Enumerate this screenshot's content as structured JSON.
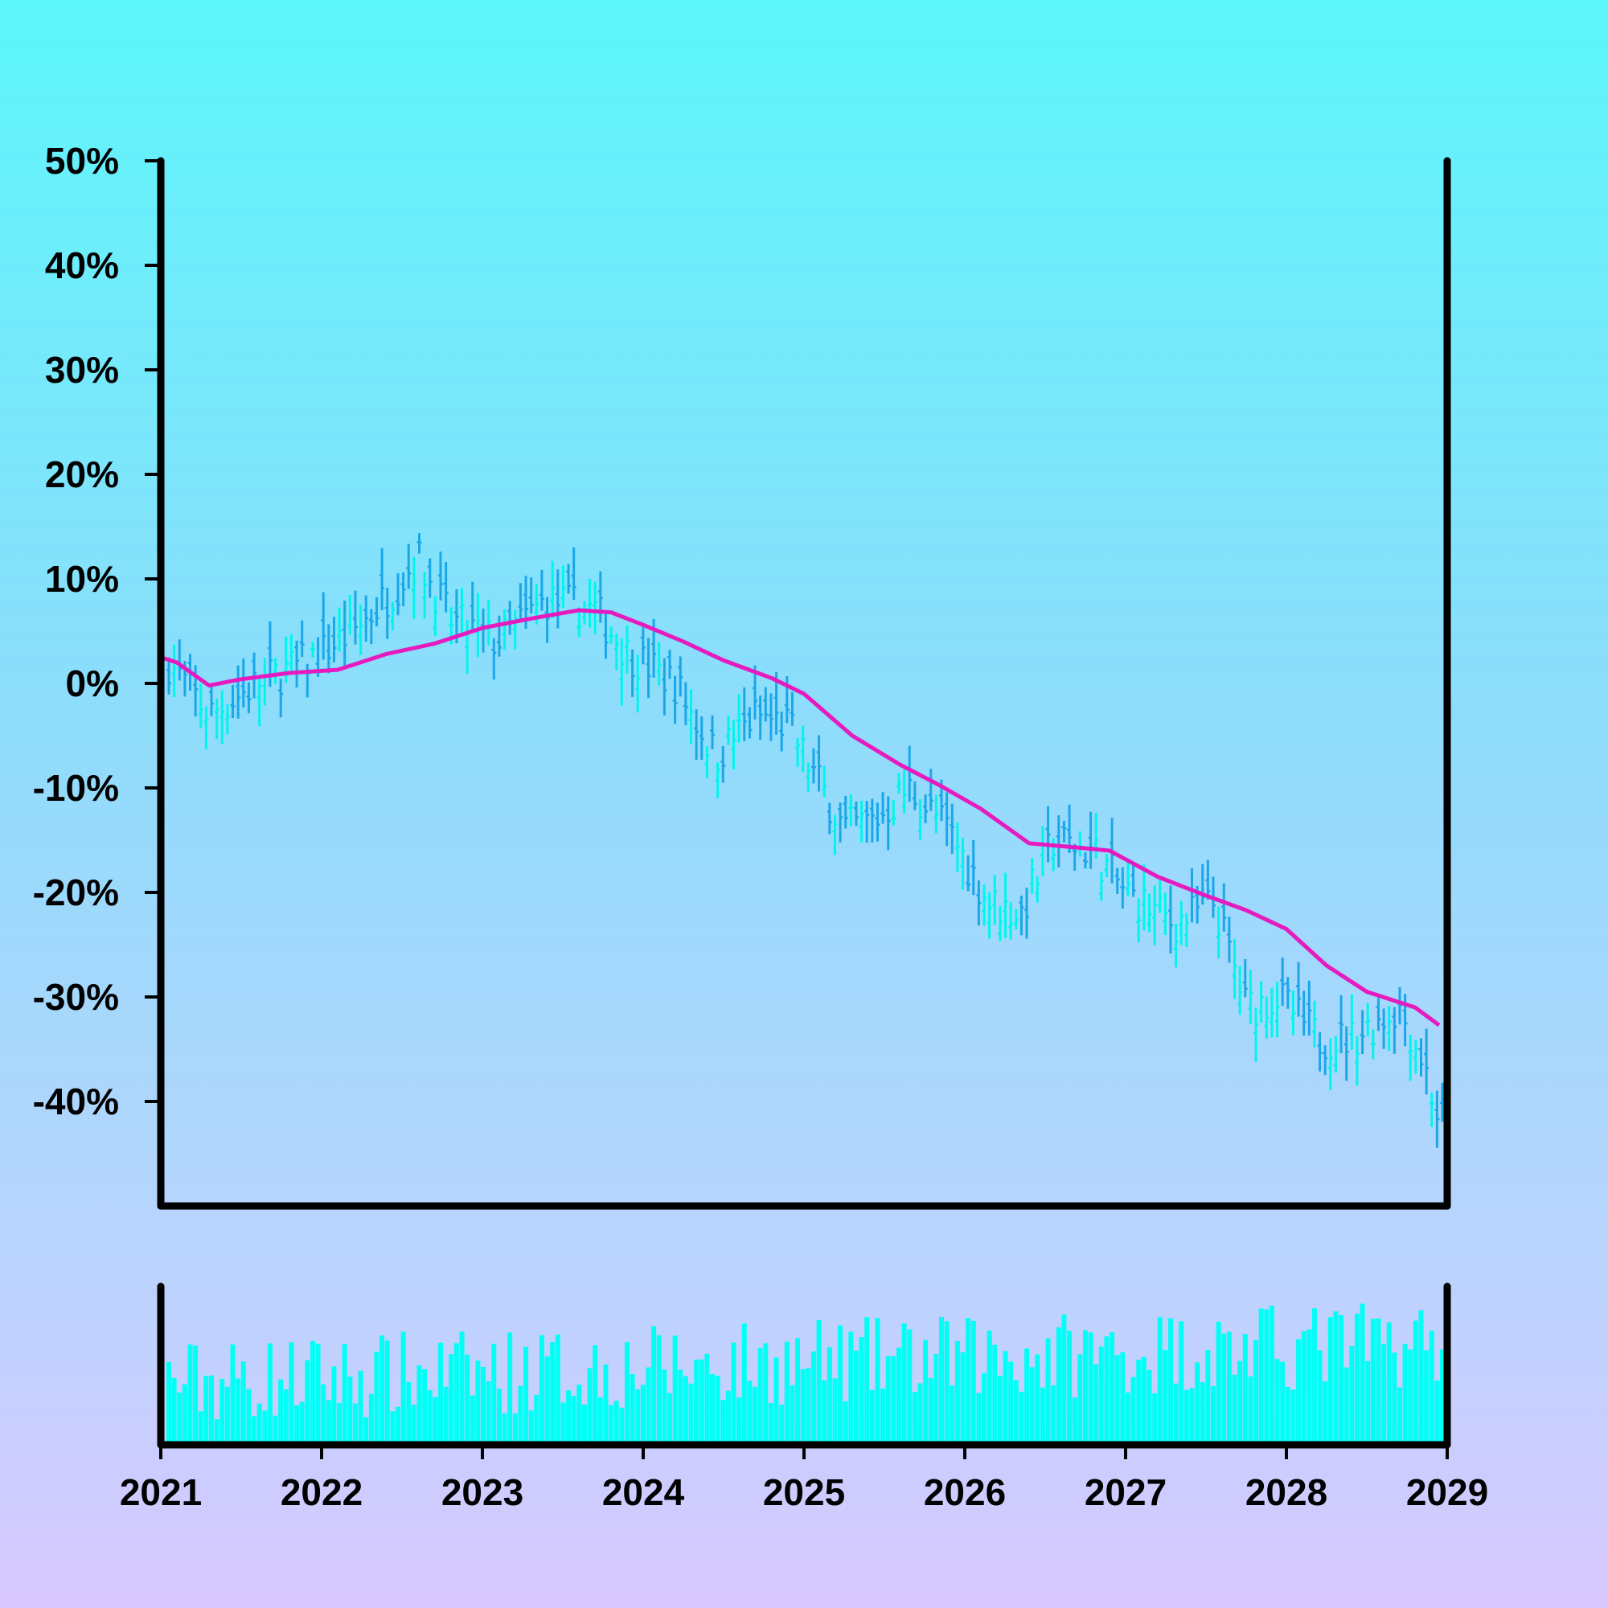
{
  "chart_data": {
    "type": "ohlc",
    "x_axis": {
      "range": [
        2021,
        2029
      ],
      "ticks": [
        "2021",
        "2022",
        "2023",
        "2024",
        "2025",
        "2026",
        "2027",
        "2028",
        "2029"
      ]
    },
    "y_axis": {
      "unit": "%",
      "range": [
        -50,
        50
      ],
      "ticks": [
        "50%",
        "40%",
        "30%",
        "20%",
        "10%",
        "0%",
        "-10%",
        "-20%",
        "-30%",
        "-40%"
      ]
    },
    "grid": false,
    "legend": "none",
    "price_anchors": [
      [
        2021.0,
        3
      ],
      [
        2021.3,
        -3
      ],
      [
        2021.6,
        0
      ],
      [
        2021.9,
        2
      ],
      [
        2022.2,
        5
      ],
      [
        2022.45,
        9
      ],
      [
        2022.6,
        12
      ],
      [
        2022.8,
        6
      ],
      [
        2023.1,
        4
      ],
      [
        2023.4,
        8
      ],
      [
        2023.7,
        7
      ],
      [
        2023.9,
        3
      ],
      [
        2024.2,
        0
      ],
      [
        2024.45,
        -7
      ],
      [
        2024.7,
        -3
      ],
      [
        2024.9,
        -4
      ],
      [
        2025.25,
        -14
      ],
      [
        2025.45,
        -13
      ],
      [
        2025.65,
        -10
      ],
      [
        2025.9,
        -14
      ],
      [
        2026.15,
        -21
      ],
      [
        2026.35,
        -22
      ],
      [
        2026.55,
        -15
      ],
      [
        2026.8,
        -16
      ],
      [
        2027.0,
        -20
      ],
      [
        2027.3,
        -23
      ],
      [
        2027.55,
        -21
      ],
      [
        2027.75,
        -31
      ],
      [
        2027.95,
        -30
      ],
      [
        2028.2,
        -34
      ],
      [
        2028.4,
        -34
      ],
      [
        2028.7,
        -31
      ],
      [
        2028.85,
        -36
      ],
      [
        2028.95,
        -42
      ]
    ],
    "moving_average": [
      [
        2021.0,
        2.5
      ],
      [
        2021.1,
        2
      ],
      [
        2021.3,
        -0.2
      ],
      [
        2021.5,
        0.4
      ],
      [
        2021.8,
        1
      ],
      [
        2022.1,
        1.3
      ],
      [
        2022.4,
        2.8
      ],
      [
        2022.7,
        3.8
      ],
      [
        2023.0,
        5.3
      ],
      [
        2023.3,
        6.2
      ],
      [
        2023.6,
        7
      ],
      [
        2023.8,
        6.8
      ],
      [
        2024.0,
        5.6
      ],
      [
        2024.25,
        4
      ],
      [
        2024.5,
        2.2
      ],
      [
        2024.8,
        0.5
      ],
      [
        2025.0,
        -1
      ],
      [
        2025.3,
        -5
      ],
      [
        2025.6,
        -7.8
      ],
      [
        2025.85,
        -9.8
      ],
      [
        2026.1,
        -12
      ],
      [
        2026.4,
        -15.3
      ],
      [
        2026.7,
        -15.7
      ],
      [
        2026.9,
        -16
      ],
      [
        2027.2,
        -18.5
      ],
      [
        2027.5,
        -20.3
      ],
      [
        2027.75,
        -21.7
      ],
      [
        2028.0,
        -23.5
      ],
      [
        2028.25,
        -27
      ],
      [
        2028.5,
        -29.5
      ],
      [
        2028.8,
        -31
      ],
      [
        2028.95,
        -32.7
      ]
    ],
    "colors": {
      "bar_up": "#00f5ec",
      "bar_down": "#1aa7ea",
      "moving_average": "#e51bbf",
      "volume": "#00fff5",
      "frame": "#000000"
    }
  }
}
